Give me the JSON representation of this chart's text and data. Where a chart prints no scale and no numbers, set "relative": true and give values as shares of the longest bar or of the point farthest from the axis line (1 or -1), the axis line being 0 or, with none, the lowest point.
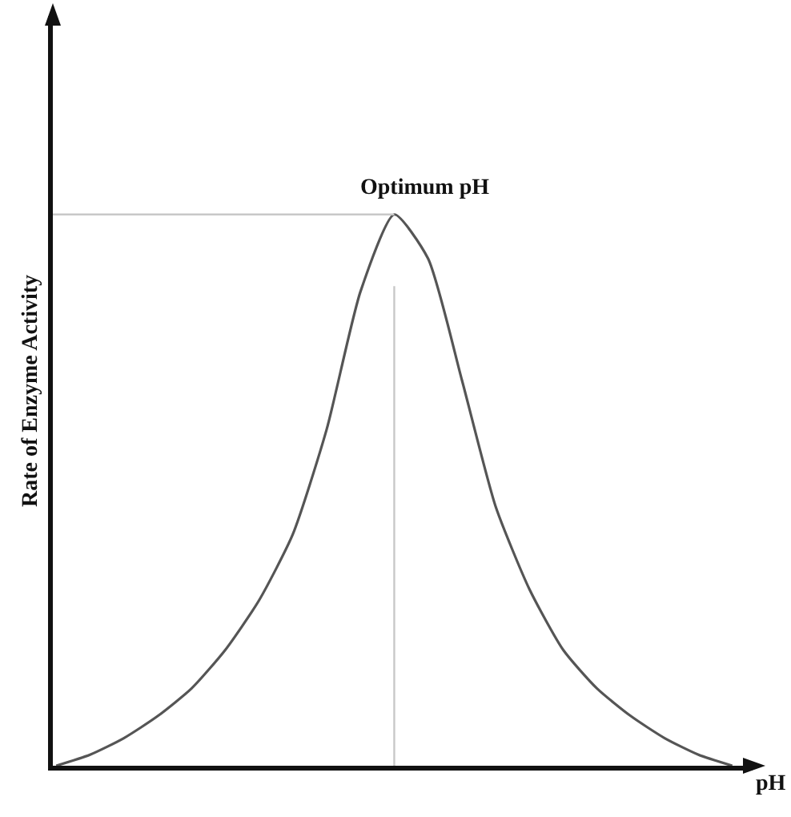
{
  "chart_data": {
    "type": "line",
    "relative": true,
    "xlabel": "pH",
    "ylabel": "Rate of Enzyme Activity",
    "categories": [
      null,
      null,
      null,
      null,
      null,
      null,
      null,
      null,
      null,
      null,
      null,
      null,
      null,
      null,
      null,
      null,
      null,
      null,
      null,
      null,
      null
    ],
    "series": [
      {
        "color": "#555555",
        "values": [
          0,
          0.02,
          0.05,
          0.09,
          0.14,
          0.21,
          0.3,
          0.42,
          0.61,
          0.86,
          1,
          0.92,
          0.7,
          0.47,
          0.32,
          0.21,
          0.14,
          0.09,
          0.05,
          0.02,
          0
        ]
      }
    ],
    "ref_lines": [
      {
        "axis": "y",
        "value": 1,
        "color": "#c8c8c8"
      }
    ],
    "annotations": [
      "Optimum pH"
    ],
    "grid": false,
    "legend": false,
    "marker": "none",
    "line_style": "solid"
  }
}
